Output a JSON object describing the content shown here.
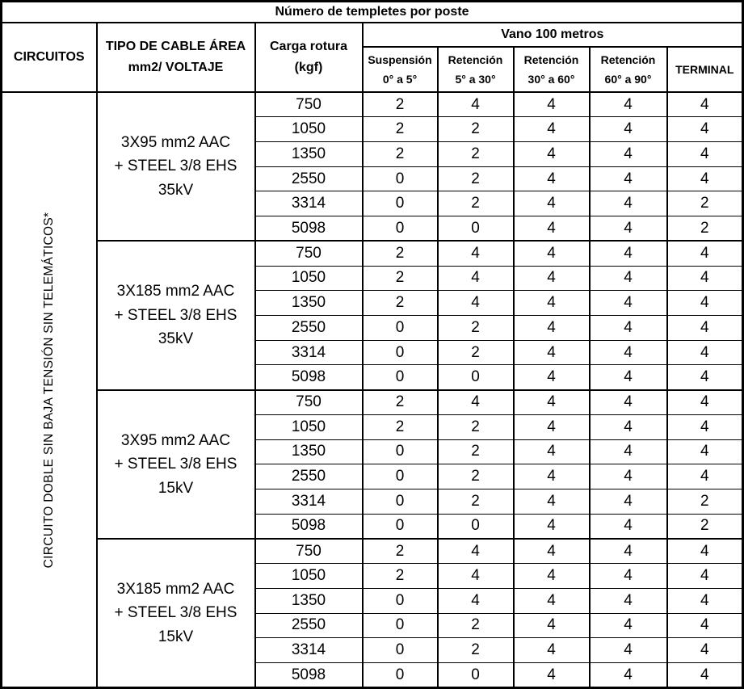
{
  "title": "Número de templetes por poste",
  "header": {
    "circuitos": "CIRCUITOS",
    "tipo_cable": "TIPO DE CABLE ÁREA\nmm2/ VOLTAJE",
    "carga_rotura": "Carga rotura\n(kgf)",
    "vano": "Vano 100 metros",
    "sub_columns": [
      "Suspensión\n0° a 5°",
      "Retención\n5° a 30°",
      "Retención\n30° a 60°",
      "Retención\n60° a 90°",
      "TERMINAL"
    ],
    "sub_column_names": [
      "column-header-suspension-0-5",
      "column-header-retencion-5-30",
      "column-header-retencion-30-60",
      "column-header-retencion-60-90",
      "column-header-terminal"
    ]
  },
  "circuit_label": "CIRCUITO DOBLE SIN BAJA TENSIÓN SIN TELEMÁTICOS*",
  "groups": [
    {
      "cable": "3X95 mm2 AAC\n+ STEEL 3/8 EHS\n35kV",
      "rows": [
        {
          "carga": "750",
          "values": [
            "2",
            "4",
            "4",
            "4",
            "4"
          ]
        },
        {
          "carga": "1050",
          "values": [
            "2",
            "2",
            "4",
            "4",
            "4"
          ]
        },
        {
          "carga": "1350",
          "values": [
            "2",
            "2",
            "4",
            "4",
            "4"
          ]
        },
        {
          "carga": "2550",
          "values": [
            "0",
            "2",
            "4",
            "4",
            "4"
          ]
        },
        {
          "carga": "3314",
          "values": [
            "0",
            "2",
            "4",
            "4",
            "2"
          ]
        },
        {
          "carga": "5098",
          "values": [
            "0",
            "0",
            "4",
            "4",
            "2"
          ]
        }
      ]
    },
    {
      "cable": "3X185 mm2 AAC\n+ STEEL 3/8 EHS\n35kV",
      "rows": [
        {
          "carga": "750",
          "values": [
            "2",
            "4",
            "4",
            "4",
            "4"
          ]
        },
        {
          "carga": "1050",
          "values": [
            "2",
            "4",
            "4",
            "4",
            "4"
          ]
        },
        {
          "carga": "1350",
          "values": [
            "2",
            "4",
            "4",
            "4",
            "4"
          ]
        },
        {
          "carga": "2550",
          "values": [
            "0",
            "2",
            "4",
            "4",
            "4"
          ]
        },
        {
          "carga": "3314",
          "values": [
            "0",
            "2",
            "4",
            "4",
            "4"
          ]
        },
        {
          "carga": "5098",
          "values": [
            "0",
            "0",
            "4",
            "4",
            "4"
          ]
        }
      ]
    },
    {
      "cable": "3X95 mm2 AAC\n+ STEEL 3/8 EHS\n15kV",
      "rows": [
        {
          "carga": "750",
          "values": [
            "2",
            "4",
            "4",
            "4",
            "4"
          ]
        },
        {
          "carga": "1050",
          "values": [
            "2",
            "2",
            "4",
            "4",
            "4"
          ]
        },
        {
          "carga": "1350",
          "values": [
            "0",
            "2",
            "4",
            "4",
            "4"
          ]
        },
        {
          "carga": "2550",
          "values": [
            "0",
            "2",
            "4",
            "4",
            "4"
          ]
        },
        {
          "carga": "3314",
          "values": [
            "0",
            "2",
            "4",
            "4",
            "2"
          ]
        },
        {
          "carga": "5098",
          "values": [
            "0",
            "0",
            "4",
            "4",
            "2"
          ]
        }
      ]
    },
    {
      "cable": "3X185 mm2 AAC\n+ STEEL 3/8 EHS\n15kV",
      "rows": [
        {
          "carga": "750",
          "values": [
            "2",
            "4",
            "4",
            "4",
            "4"
          ]
        },
        {
          "carga": "1050",
          "values": [
            "2",
            "4",
            "4",
            "4",
            "4"
          ]
        },
        {
          "carga": "1350",
          "values": [
            "0",
            "4",
            "4",
            "4",
            "4"
          ]
        },
        {
          "carga": "2550",
          "values": [
            "0",
            "2",
            "4",
            "4",
            "4"
          ]
        },
        {
          "carga": "3314",
          "values": [
            "0",
            "2",
            "4",
            "4",
            "4"
          ]
        },
        {
          "carga": "5098",
          "values": [
            "0",
            "0",
            "4",
            "4",
            "4"
          ]
        }
      ]
    }
  ],
  "colors": {
    "border": "#000000",
    "background": "#ffffff",
    "text": "#000000"
  }
}
